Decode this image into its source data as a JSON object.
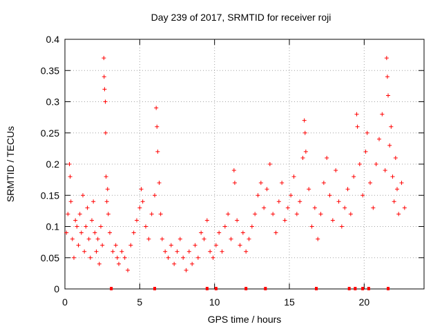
{
  "chart_data": {
    "type": "scatter",
    "title": "Day 239 of 2017, SRMTID for receiver roji",
    "xlabel": "GPS time / hours",
    "ylabel": "SRMTID / TECUs",
    "xlim": [
      0,
      24
    ],
    "ylim": [
      0,
      0.4
    ],
    "x_ticks": [
      0,
      5,
      10,
      15,
      20
    ],
    "x_tick_labels": [
      "0",
      "5",
      "10",
      "15",
      "20"
    ],
    "y_ticks": [
      0,
      0.05,
      0.1,
      0.15,
      0.2,
      0.25,
      0.3,
      0.35,
      0.4
    ],
    "y_tick_labels": [
      "0",
      "0.05",
      "0.1",
      "0.15",
      "0.2",
      "0.25",
      "0.3",
      "0.35",
      "0.4"
    ],
    "grid": true,
    "marker": "plus",
    "color": "#ff0000",
    "series": [
      {
        "name": "SRMTID",
        "points": [
          [
            0.1,
            0.09
          ],
          [
            0.2,
            0.12
          ],
          [
            0.3,
            0.2
          ],
          [
            0.35,
            0.18
          ],
          [
            0.4,
            0.14
          ],
          [
            0.5,
            0.08
          ],
          [
            0.6,
            0.05
          ],
          [
            0.7,
            0.11
          ],
          [
            0.8,
            0.1
          ],
          [
            0.9,
            0.07
          ],
          [
            1.0,
            0.12
          ],
          [
            1.1,
            0.09
          ],
          [
            1.2,
            0.15
          ],
          [
            1.3,
            0.06
          ],
          [
            1.4,
            0.1
          ],
          [
            1.5,
            0.13
          ],
          [
            1.6,
            0.08
          ],
          [
            1.7,
            0.05
          ],
          [
            1.8,
            0.11
          ],
          [
            1.9,
            0.14
          ],
          [
            2.0,
            0.09
          ],
          [
            2.1,
            0.06
          ],
          [
            2.2,
            0.08
          ],
          [
            2.3,
            0.04
          ],
          [
            2.4,
            0.1
          ],
          [
            2.5,
            0.07
          ],
          [
            2.6,
            0.37
          ],
          [
            2.62,
            0.34
          ],
          [
            2.65,
            0.32
          ],
          [
            2.7,
            0.3
          ],
          [
            2.72,
            0.25
          ],
          [
            2.75,
            0.18
          ],
          [
            2.8,
            0.14
          ],
          [
            2.85,
            0.16
          ],
          [
            2.9,
            0.12
          ],
          [
            3.0,
            0.09
          ],
          [
            3.2,
            0.06
          ],
          [
            3.4,
            0.07
          ],
          [
            3.5,
            0.05
          ],
          [
            3.6,
            0.04
          ],
          [
            3.8,
            0.06
          ],
          [
            4.0,
            0.05
          ],
          [
            4.2,
            0.03
          ],
          [
            4.4,
            0.07
          ],
          [
            4.6,
            0.09
          ],
          [
            4.8,
            0.11
          ],
          [
            5.0,
            0.13
          ],
          [
            5.1,
            0.16
          ],
          [
            5.2,
            0.14
          ],
          [
            5.4,
            0.1
          ],
          [
            5.6,
            0.08
          ],
          [
            5.8,
            0.12
          ],
          [
            6.0,
            0.15
          ],
          [
            6.1,
            0.29
          ],
          [
            6.15,
            0.26
          ],
          [
            6.2,
            0.22
          ],
          [
            6.3,
            0.17
          ],
          [
            6.4,
            0.12
          ],
          [
            6.5,
            0.08
          ],
          [
            6.7,
            0.06
          ],
          [
            6.9,
            0.05
          ],
          [
            7.1,
            0.07
          ],
          [
            7.3,
            0.04
          ],
          [
            7.5,
            0.06
          ],
          [
            7.7,
            0.08
          ],
          [
            7.9,
            0.05
          ],
          [
            8.1,
            0.03
          ],
          [
            8.3,
            0.06
          ],
          [
            8.5,
            0.04
          ],
          [
            8.7,
            0.07
          ],
          [
            8.9,
            0.05
          ],
          [
            9.1,
            0.09
          ],
          [
            9.3,
            0.08
          ],
          [
            9.5,
            0.11
          ],
          [
            9.7,
            0.06
          ],
          [
            9.9,
            0.05
          ],
          [
            10.1,
            0.07
          ],
          [
            10.3,
            0.09
          ],
          [
            10.5,
            0.06
          ],
          [
            10.7,
            0.1
          ],
          [
            10.9,
            0.12
          ],
          [
            11.1,
            0.08
          ],
          [
            11.3,
            0.19
          ],
          [
            11.35,
            0.17
          ],
          [
            11.5,
            0.11
          ],
          [
            11.7,
            0.07
          ],
          [
            11.9,
            0.09
          ],
          [
            12.1,
            0.06
          ],
          [
            12.3,
            0.08
          ],
          [
            12.5,
            0.1
          ],
          [
            12.7,
            0.12
          ],
          [
            12.9,
            0.15
          ],
          [
            13.1,
            0.17
          ],
          [
            13.3,
            0.13
          ],
          [
            13.5,
            0.16
          ],
          [
            13.7,
            0.2
          ],
          [
            13.9,
            0.12
          ],
          [
            14.1,
            0.09
          ],
          [
            14.3,
            0.14
          ],
          [
            14.5,
            0.17
          ],
          [
            14.7,
            0.11
          ],
          [
            14.9,
            0.13
          ],
          [
            15.1,
            0.15
          ],
          [
            15.3,
            0.18
          ],
          [
            15.5,
            0.12
          ],
          [
            15.7,
            0.14
          ],
          [
            15.9,
            0.21
          ],
          [
            16.0,
            0.27
          ],
          [
            16.05,
            0.25
          ],
          [
            16.1,
            0.22
          ],
          [
            16.3,
            0.16
          ],
          [
            16.5,
            0.1
          ],
          [
            16.7,
            0.13
          ],
          [
            16.9,
            0.08
          ],
          [
            17.1,
            0.12
          ],
          [
            17.3,
            0.17
          ],
          [
            17.5,
            0.21
          ],
          [
            17.7,
            0.15
          ],
          [
            17.9,
            0.11
          ],
          [
            18.1,
            0.19
          ],
          [
            18.3,
            0.14
          ],
          [
            18.5,
            0.1
          ],
          [
            18.7,
            0.13
          ],
          [
            18.9,
            0.16
          ],
          [
            19.1,
            0.12
          ],
          [
            19.3,
            0.18
          ],
          [
            19.5,
            0.28
          ],
          [
            19.55,
            0.26
          ],
          [
            19.7,
            0.2
          ],
          [
            19.9,
            0.15
          ],
          [
            20.1,
            0.22
          ],
          [
            20.2,
            0.25
          ],
          [
            20.4,
            0.17
          ],
          [
            20.6,
            0.13
          ],
          [
            20.8,
            0.2
          ],
          [
            21.0,
            0.24
          ],
          [
            21.2,
            0.28
          ],
          [
            21.4,
            0.19
          ],
          [
            21.5,
            0.37
          ],
          [
            21.55,
            0.34
          ],
          [
            21.6,
            0.31
          ],
          [
            21.7,
            0.23
          ],
          [
            21.8,
            0.26
          ],
          [
            21.9,
            0.18
          ],
          [
            22.0,
            0.14
          ],
          [
            22.1,
            0.21
          ],
          [
            22.2,
            0.16
          ],
          [
            22.3,
            0.12
          ],
          [
            22.5,
            0.17
          ],
          [
            22.7,
            0.13
          ]
        ]
      }
    ],
    "zero_markers_x": [
      3.1,
      6.0,
      9.5,
      10.1,
      12.1,
      13.4,
      16.8,
      19.0,
      19.4,
      19.9,
      20.3,
      21.6
    ]
  }
}
